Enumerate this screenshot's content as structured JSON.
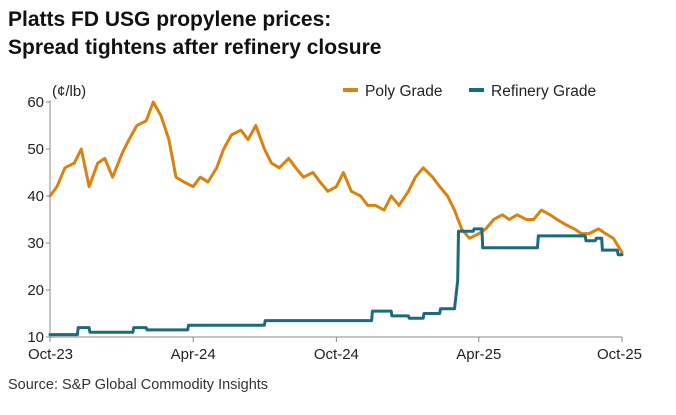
{
  "title_lines": [
    "Platts FD USG propylene prices:",
    "Spread tightens after refinery closure"
  ],
  "source": "Source: S&P Global Commodity Insights",
  "colors": {
    "poly": "#d9820f",
    "refinery": "#1b6a7f",
    "axis": "#888888",
    "text": "#222222"
  },
  "chart_data": {
    "type": "line",
    "title": "Platts FD USG propylene prices: Spread tightens after refinery closure",
    "ylabel": "(¢/lb)",
    "ylim": [
      10,
      60
    ],
    "yticks": [
      10,
      20,
      30,
      40,
      50,
      60
    ],
    "xlim": [
      "2023-10",
      "2025-10"
    ],
    "xticks": [
      {
        "label": "Oct-23",
        "x": "2023-10"
      },
      {
        "label": "Apr-24",
        "x": "2024-04"
      },
      {
        "label": "Oct-24",
        "x": "2024-10"
      },
      {
        "label": "Apr-25",
        "x": "2025-04"
      },
      {
        "label": "Oct-25",
        "x": "2025-10"
      }
    ],
    "legend": "top-right",
    "grid": false,
    "series": [
      {
        "name": "Poly Grade",
        "color": "#d9820f",
        "x": [
          "2023-10-01",
          "2023-10-10",
          "2023-10-20",
          "2023-11-01",
          "2023-11-10",
          "2023-11-20",
          "2023-12-01",
          "2023-12-10",
          "2023-12-20",
          "2024-01-01",
          "2024-01-10",
          "2024-01-20",
          "2024-02-01",
          "2024-02-10",
          "2024-02-20",
          "2024-03-01",
          "2024-03-10",
          "2024-03-20",
          "2024-04-01",
          "2024-04-10",
          "2024-04-20",
          "2024-05-01",
          "2024-05-10",
          "2024-05-20",
          "2024-06-01",
          "2024-06-10",
          "2024-06-20",
          "2024-07-01",
          "2024-07-10",
          "2024-07-20",
          "2024-08-01",
          "2024-08-10",
          "2024-08-20",
          "2024-09-01",
          "2024-09-10",
          "2024-09-20",
          "2024-10-01",
          "2024-10-10",
          "2024-10-20",
          "2024-11-01",
          "2024-11-10",
          "2024-11-20",
          "2024-12-01",
          "2024-12-10",
          "2024-12-20",
          "2025-01-01",
          "2025-01-10",
          "2025-01-20",
          "2025-02-01",
          "2025-02-10",
          "2025-02-20",
          "2025-03-01",
          "2025-03-10",
          "2025-03-20",
          "2025-04-01",
          "2025-04-10",
          "2025-04-20",
          "2025-05-01",
          "2025-05-10",
          "2025-05-20",
          "2025-06-01",
          "2025-06-10",
          "2025-06-20",
          "2025-07-01",
          "2025-07-10",
          "2025-07-20",
          "2025-08-01",
          "2025-08-10",
          "2025-08-20",
          "2025-09-01",
          "2025-09-10",
          "2025-09-20",
          "2025-10-01"
        ],
        "values": [
          40,
          42,
          46,
          47,
          50,
          42,
          47,
          48,
          44,
          49,
          52,
          55,
          56,
          60,
          57,
          52,
          44,
          43,
          42,
          44,
          43,
          46,
          50,
          53,
          54,
          52,
          55,
          50,
          47,
          46,
          48,
          46,
          44,
          45,
          43,
          41,
          42,
          45,
          41,
          40,
          38,
          38,
          37,
          40,
          38,
          41,
          44,
          46,
          44,
          42,
          40,
          37,
          33,
          31,
          32,
          33,
          35,
          36,
          35,
          36,
          35,
          35,
          37,
          36,
          35,
          34,
          33,
          32,
          32,
          33,
          32,
          31,
          28
        ]
      },
      {
        "name": "Refinery Grade",
        "color": "#1b6a7f",
        "x": [
          "2023-10-01",
          "2023-11-05",
          "2023-11-06",
          "2023-11-20",
          "2023-11-21",
          "2024-01-15",
          "2024-01-16",
          "2024-02-01",
          "2024-02-02",
          "2024-03-25",
          "2024-03-26",
          "2024-07-01",
          "2024-07-02",
          "2024-11-15",
          "2024-11-16",
          "2024-12-10",
          "2024-12-11",
          "2025-01-01",
          "2025-01-02",
          "2025-01-20",
          "2025-01-21",
          "2025-02-10",
          "2025-02-11",
          "2025-03-01",
          "2025-03-05",
          "2025-03-06",
          "2025-03-25",
          "2025-03-26",
          "2025-04-05",
          "2025-04-06",
          "2025-06-15",
          "2025-06-16",
          "2025-08-15",
          "2025-08-16",
          "2025-08-28",
          "2025-08-29",
          "2025-09-05",
          "2025-09-06",
          "2025-09-25",
          "2025-09-26",
          "2025-10-01"
        ],
        "values": [
          10.5,
          10.5,
          12,
          12,
          11,
          11,
          12,
          12,
          11.5,
          11.5,
          12.5,
          12.5,
          13.5,
          13.5,
          15.5,
          15.5,
          14.5,
          14.5,
          14,
          14,
          15,
          15,
          16,
          16,
          22,
          32.5,
          32.5,
          33,
          33,
          29,
          29,
          31.5,
          31.5,
          30.5,
          30.5,
          31,
          31,
          28.5,
          28.5,
          27.5,
          27.5
        ]
      }
    ]
  }
}
